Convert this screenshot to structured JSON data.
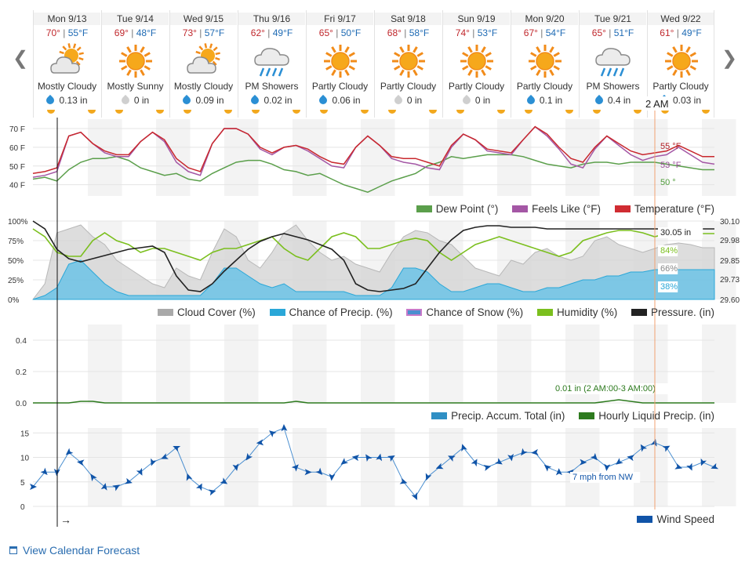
{
  "days": [
    {
      "name": "Mon 9/13",
      "hi": "70°",
      "lo": "55°F",
      "cond": "Mostly Cloudy",
      "icon": "partly-sunny-icon",
      "precip": "0.13 in",
      "drop": "blue"
    },
    {
      "name": "Tue 9/14",
      "hi": "69°",
      "lo": "48°F",
      "cond": "Mostly Sunny",
      "icon": "sun-icon",
      "precip": "0 in",
      "drop": "gray"
    },
    {
      "name": "Wed 9/15",
      "hi": "73°",
      "lo": "57°F",
      "cond": "Mostly Cloudy",
      "icon": "partly-sunny-icon",
      "precip": "0.09 in",
      "drop": "blue"
    },
    {
      "name": "Thu 9/16",
      "hi": "62°",
      "lo": "49°F",
      "cond": "PM Showers",
      "icon": "rain-cloud-icon",
      "precip": "0.02 in",
      "drop": "blue"
    },
    {
      "name": "Fri 9/17",
      "hi": "65°",
      "lo": "50°F",
      "cond": "Partly Cloudy",
      "icon": "sun-icon",
      "precip": "0.06 in",
      "drop": "blue"
    },
    {
      "name": "Sat 9/18",
      "hi": "68°",
      "lo": "58°F",
      "cond": "Partly Cloudy",
      "icon": "sun-icon",
      "precip": "0 in",
      "drop": "gray"
    },
    {
      "name": "Sun 9/19",
      "hi": "74°",
      "lo": "53°F",
      "cond": "Partly Cloudy",
      "icon": "sun-icon",
      "precip": "0 in",
      "drop": "gray"
    },
    {
      "name": "Mon 9/20",
      "hi": "67°",
      "lo": "54°F",
      "cond": "Partly Cloudy",
      "icon": "sun-icon",
      "precip": "0.1 in",
      "drop": "blue"
    },
    {
      "name": "Tue 9/21",
      "hi": "65°",
      "lo": "51°F",
      "cond": "PM Showers",
      "icon": "rain-cloud-icon",
      "precip": "0.4 in",
      "drop": "blue"
    },
    {
      "name": "Wed 9/22",
      "hi": "61°",
      "lo": "49°F",
      "cond": "Partly Cloudy",
      "icon": "sun-icon",
      "precip": "0.03 in",
      "drop": "blue"
    }
  ],
  "cursor": {
    "time": "2 AM",
    "wind_start": "→"
  },
  "temp_chart": {
    "ticks": [
      "70 F",
      "60 F",
      "50 F",
      "40 F"
    ],
    "tick_values": [
      70,
      60,
      50,
      40
    ],
    "ylim": [
      34,
      75
    ],
    "temperature": [
      46,
      47,
      49,
      66,
      68,
      62,
      58,
      56,
      56,
      63,
      68,
      64,
      54,
      49,
      47,
      62,
      70,
      70,
      67,
      60,
      57,
      60,
      61,
      59,
      55,
      52,
      51,
      60,
      66,
      61,
      55,
      54,
      54,
      52,
      50,
      61,
      67,
      64,
      59,
      58,
      57,
      64,
      71,
      67,
      60,
      54,
      52,
      60,
      66,
      62,
      58,
      56,
      57,
      58,
      61,
      58,
      55,
      55
    ],
    "feels_like": [
      44,
      45,
      47,
      66,
      68,
      62,
      57,
      55,
      55,
      63,
      68,
      63,
      52,
      47,
      45,
      62,
      70,
      70,
      67,
      59,
      56,
      60,
      61,
      58,
      54,
      50,
      49,
      60,
      66,
      61,
      54,
      52,
      51,
      49,
      48,
      60,
      67,
      64,
      58,
      57,
      56,
      64,
      71,
      66,
      59,
      51,
      49,
      59,
      66,
      61,
      56,
      53,
      55,
      56,
      60,
      56,
      52,
      51
    ],
    "dew_point": [
      43,
      44,
      42,
      48,
      52,
      54,
      54,
      55,
      53,
      49,
      47,
      45,
      46,
      43,
      42,
      46,
      49,
      52,
      53,
      53,
      51,
      48,
      47,
      45,
      46,
      43,
      40,
      38,
      36,
      39,
      42,
      44,
      46,
      50,
      52,
      55,
      54,
      55,
      56,
      56,
      56,
      55,
      53,
      51,
      50,
      49,
      51,
      52,
      52,
      51,
      52,
      52,
      52,
      51,
      50,
      49,
      48,
      48
    ],
    "labels": {
      "temperature": "55 °F",
      "feels_like": "53 °F",
      "dew_point": "50 °"
    },
    "label_colors": {
      "temperature": "#b11f25",
      "feels_like": "#9b4f9b",
      "dew_point": "#4f9d3a"
    }
  },
  "temp_legend": [
    "Dew Point (°)",
    "Feels Like (°F)",
    "Temperature (°F)"
  ],
  "multi_chart": {
    "left_ticks": [
      "100%",
      "75%",
      "50%",
      "25%",
      "0%"
    ],
    "left_values": [
      100,
      75,
      50,
      25,
      0
    ],
    "right_ticks": [
      "30.10",
      "29.98",
      "29.85",
      "29.73",
      "29.60"
    ],
    "right_values": [
      30.1,
      29.98,
      29.85,
      29.73,
      29.6
    ],
    "cloud_cover": [
      0,
      20,
      85,
      90,
      95,
      80,
      70,
      50,
      40,
      30,
      20,
      15,
      40,
      30,
      25,
      60,
      90,
      80,
      50,
      40,
      60,
      85,
      95,
      75,
      60,
      50,
      55,
      45,
      40,
      35,
      60,
      80,
      88,
      85,
      75,
      70,
      55,
      40,
      35,
      30,
      50,
      45,
      60,
      65,
      55,
      50,
      55,
      75,
      80,
      70,
      65,
      60,
      65,
      70,
      72,
      70,
      66,
      66
    ],
    "precip_chance": [
      0,
      5,
      15,
      45,
      50,
      35,
      20,
      10,
      5,
      5,
      5,
      5,
      5,
      5,
      5,
      20,
      40,
      40,
      30,
      20,
      15,
      20,
      10,
      10,
      10,
      10,
      10,
      5,
      5,
      5,
      15,
      40,
      40,
      35,
      20,
      10,
      10,
      15,
      20,
      20,
      15,
      10,
      10,
      15,
      15,
      20,
      25,
      25,
      30,
      30,
      35,
      35,
      38,
      38,
      38,
      38,
      38,
      38
    ],
    "humidity": [
      90,
      80,
      60,
      55,
      55,
      75,
      85,
      75,
      70,
      60,
      65,
      65,
      60,
      55,
      50,
      60,
      65,
      65,
      70,
      75,
      80,
      65,
      55,
      50,
      65,
      80,
      85,
      80,
      65,
      65,
      70,
      75,
      78,
      75,
      60,
      50,
      60,
      70,
      75,
      80,
      75,
      70,
      65,
      60,
      55,
      60,
      75,
      80,
      85,
      88,
      88,
      85,
      80,
      84,
      84,
      84,
      84,
      84
    ],
    "pressure": [
      30.1,
      30.05,
      29.92,
      29.86,
      29.84,
      29.86,
      29.88,
      29.9,
      29.92,
      29.93,
      29.94,
      29.9,
      29.75,
      29.66,
      29.65,
      29.7,
      29.78,
      29.85,
      29.92,
      29.97,
      30.0,
      30.02,
      30.0,
      29.98,
      29.95,
      29.92,
      29.85,
      29.7,
      29.66,
      29.65,
      29.66,
      29.67,
      29.7,
      29.8,
      29.9,
      29.98,
      30.04,
      30.06,
      30.07,
      30.07,
      30.06,
      30.06,
      30.06,
      30.05,
      30.05,
      30.05,
      30.05,
      30.05,
      30.05,
      30.05,
      30.05,
      30.05,
      30.05,
      30.05,
      30.05,
      30.05,
      30.05,
      30.05
    ],
    "labels": {
      "pressure": "30.05 in",
      "humidity": "84%",
      "cloud_cover": "66%",
      "precip_chance": "38%"
    },
    "label_colors": {
      "pressure": "#222222",
      "humidity": "#7bbf1e",
      "cloud_cover": "#888888",
      "precip_chance": "#2aa7d8"
    }
  },
  "multi_legend": [
    "Cloud Cover (%)",
    "Chance of Precip. (%)",
    "Chance of Snow (%)",
    "Humidity (%)",
    "Pressure. (in)"
  ],
  "precip_chart": {
    "ticks": [
      "0.4",
      "0.2",
      "0.0"
    ],
    "tick_values": [
      0.4,
      0.2,
      0.0
    ],
    "ylim": [
      0,
      0.5
    ],
    "hourly": [
      0,
      0,
      0,
      0,
      0.01,
      0.01,
      0,
      0,
      0,
      0,
      0,
      0,
      0,
      0,
      0,
      0,
      0,
      0,
      0,
      0,
      0,
      0,
      0.01,
      0,
      0,
      0,
      0,
      0,
      0,
      0,
      0,
      0,
      0,
      0,
      0,
      0,
      0,
      0,
      0,
      0,
      0,
      0,
      0,
      0,
      0,
      0,
      0,
      0,
      0.01,
      0.02,
      0.01,
      0,
      0,
      0,
      0,
      0,
      0,
      0
    ],
    "annotation": "0.01 in (2 AM:00-3 AM:00)"
  },
  "precip_legend": [
    "Precip. Accum. Total (in)",
    "Hourly Liquid Precip. (in)"
  ],
  "wind_chart": {
    "ticks": [
      "15",
      "10",
      "5",
      "0"
    ],
    "tick_values": [
      15,
      10,
      5,
      0
    ],
    "ylim": [
      0,
      16
    ],
    "speed": [
      4,
      7,
      7,
      11,
      9,
      6,
      4,
      4,
      5,
      7,
      9,
      10,
      12,
      6,
      4,
      3,
      5,
      8,
      10,
      13,
      15,
      16,
      8,
      7,
      7,
      6,
      9,
      10,
      10,
      10,
      10,
      5,
      2,
      6,
      8,
      10,
      12,
      9,
      8,
      9,
      10,
      11,
      11,
      8,
      7,
      7,
      9,
      10,
      8,
      9,
      10,
      12,
      13,
      12,
      8,
      8,
      9,
      8
    ],
    "label": "7 mph from NW"
  },
  "wind_legend": "Wind Speed",
  "calendar_link": "View Calendar Forecast"
}
